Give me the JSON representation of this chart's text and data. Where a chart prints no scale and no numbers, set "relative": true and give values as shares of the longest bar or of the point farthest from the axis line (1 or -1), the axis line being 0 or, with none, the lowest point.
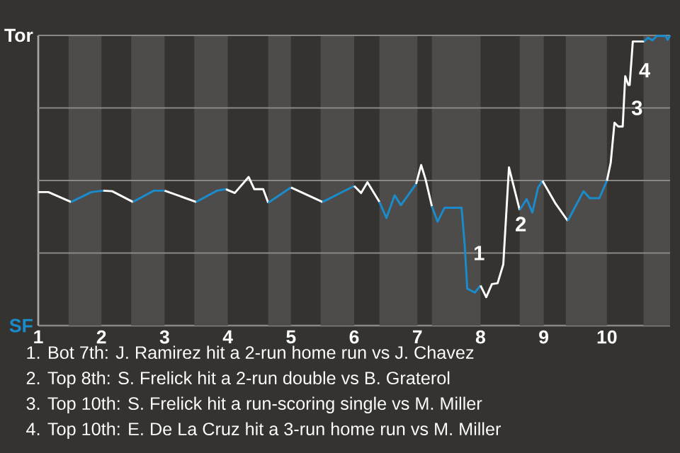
{
  "chart_data": {
    "type": "line",
    "line_style": "solid",
    "relative": true,
    "xlim": [
      1,
      11
    ],
    "xticks": [
      1,
      2,
      3,
      4,
      5,
      6,
      7,
      8,
      9,
      10
    ],
    "ref_lines": [
      {
        "axis": "y",
        "value": 0.25,
        "color": "#8a8885"
      },
      {
        "axis": "y",
        "value": 0.5,
        "color": "#8a8885"
      },
      {
        "axis": "y",
        "value": 0.75,
        "color": "#8a8885"
      },
      {
        "axis": "y",
        "value": 1,
        "color": "#8a8885"
      }
    ],
    "bands": [
      {
        "axis": "x",
        "from": 1.48,
        "to": 2,
        "color": "#4e4c4a"
      },
      {
        "axis": "x",
        "from": 2.47,
        "to": 3,
        "color": "#4e4c4a"
      },
      {
        "axis": "x",
        "from": 3.47,
        "to": 4,
        "color": "#4e4c4a"
      },
      {
        "axis": "x",
        "from": 4.64,
        "to": 5,
        "color": "#4e4c4a"
      },
      {
        "axis": "x",
        "from": 5.47,
        "to": 6,
        "color": "#4e4c4a"
      },
      {
        "axis": "x",
        "from": 6.4,
        "to": 7,
        "color": "#4e4c4a"
      },
      {
        "axis": "x",
        "from": 7.23,
        "to": 8,
        "color": "#4e4c4a"
      },
      {
        "axis": "x",
        "from": 8.62,
        "to": 9,
        "color": "#4e4c4a"
      },
      {
        "axis": "x",
        "from": 9.35,
        "to": 10,
        "color": "#4e4c4a"
      },
      {
        "axis": "x",
        "from": 10.58,
        "to": 11,
        "color": "#4e4c4a"
      }
    ],
    "series": [
      {
        "name": "Tor",
        "color": "#ffffff",
        "x": [
          1,
          1.16,
          1.52
        ],
        "values": [
          0.46,
          0.46,
          0.426
        ]
      },
      {
        "name": "SF",
        "color": "#1a8ccc",
        "x": [
          1.52,
          1.84,
          2.03
        ],
        "values": [
          0.426,
          0.46,
          0.465
        ]
      },
      {
        "color": "#ffffff",
        "x": [
          2.03,
          2.17,
          2.5
        ],
        "values": [
          0.465,
          0.463,
          0.426
        ]
      },
      {
        "color": "#1a8ccc",
        "x": [
          2.5,
          2.83,
          3
        ],
        "values": [
          0.426,
          0.465,
          0.465
        ]
      },
      {
        "color": "#ffffff",
        "x": [
          3,
          3.5
        ],
        "values": [
          0.465,
          0.426
        ]
      },
      {
        "color": "#1a8ccc",
        "x": [
          3.5,
          3.83,
          3.97
        ],
        "values": [
          0.426,
          0.465,
          0.47
        ]
      },
      {
        "color": "#ffffff",
        "x": [
          3.97,
          4.11,
          4.33,
          4.42,
          4.56,
          4.64
        ],
        "values": [
          0.47,
          0.457,
          0.512,
          0.47,
          0.47,
          0.423
        ]
      },
      {
        "color": "#1a8ccc",
        "x": [
          4.64,
          5
        ],
        "values": [
          0.423,
          0.476
        ]
      },
      {
        "color": "#ffffff",
        "x": [
          5,
          5.5
        ],
        "values": [
          0.476,
          0.426
        ]
      },
      {
        "color": "#1a8ccc",
        "x": [
          5.5,
          6
        ],
        "values": [
          0.426,
          0.481
        ]
      },
      {
        "color": "#ffffff",
        "x": [
          6,
          6.11,
          6.21,
          6.4
        ],
        "values": [
          0.481,
          0.457,
          0.494,
          0.426
        ]
      },
      {
        "color": "#1a8ccc",
        "x": [
          6.4,
          6.51,
          6.64,
          6.74,
          6.98
        ],
        "values": [
          0.426,
          0.371,
          0.449,
          0.415,
          0.488
        ]
      },
      {
        "color": "#ffffff",
        "x": [
          6.98,
          7.06,
          7.13,
          7.23
        ],
        "values": [
          0.488,
          0.553,
          0.504,
          0.411
        ]
      },
      {
        "color": "#1a8ccc",
        "x": [
          7.23,
          7.32,
          7.43,
          7.7,
          7.75,
          7.79,
          7.91,
          8
        ],
        "values": [
          0.411,
          0.358,
          0.406,
          0.406,
          0.276,
          0.127,
          0.114,
          0.138
        ]
      },
      {
        "color": "#ffffff",
        "x": [
          8,
          8.09,
          8.18,
          8.27,
          8.36,
          8.45,
          8.62
        ],
        "values": [
          0.138,
          0.098,
          0.143,
          0.146,
          0.211,
          0.545,
          0.398
        ]
      },
      {
        "color": "#1a8ccc",
        "x": [
          8.62,
          8.73,
          8.82,
          8.91,
          8.98
        ],
        "values": [
          0.398,
          0.436,
          0.39,
          0.475,
          0.499
        ]
      },
      {
        "color": "#ffffff",
        "x": [
          8.98,
          9.18,
          9.38
        ],
        "values": [
          0.499,
          0.423,
          0.361
        ]
      },
      {
        "color": "#1a8ccc",
        "x": [
          9.38,
          9.63,
          9.73,
          9.88,
          10
        ],
        "values": [
          0.361,
          0.463,
          0.439,
          0.439,
          0.499
        ]
      },
      {
        "color": "#ffffff",
        "x": [
          10,
          10.06,
          10.12,
          10.18,
          10.25,
          10.29,
          10.34,
          10.36,
          10.41,
          10.59
        ],
        "values": [
          0.499,
          0.561,
          0.699,
          0.686,
          0.686,
          0.859,
          0.829,
          0.829,
          0.979,
          0.979
        ]
      },
      {
        "color": "#1a8ccc",
        "x": [
          10.59,
          10.65,
          10.72,
          10.79,
          10.93,
          10.96,
          11
        ],
        "values": [
          0.979,
          0.992,
          0.983,
          0.998,
          0.998,
          0.985,
          1
        ]
      }
    ],
    "annotations": [
      {
        "text": "1",
        "x": 7.79,
        "y": 0.25
      },
      {
        "text": "2",
        "x": 8.45,
        "y": 0.35
      },
      {
        "text": "3",
        "x": 10.29,
        "y": 0.75
      },
      {
        "text": "4",
        "x": 10.41,
        "y": 0.88
      },
      "1. Bot 7th: J. Ramirez hit a 2-run home run vs J. Chavez",
      "2. Top 8th: S. Frelick hit a 2-run double vs B. Graterol",
      "3. Top 10th: S. Frelick hit a run-scoring single vs M. Miller",
      "4. Top 10th: E. De La Cruz hit a 3-run home run vs M. Miller"
    ]
  }
}
